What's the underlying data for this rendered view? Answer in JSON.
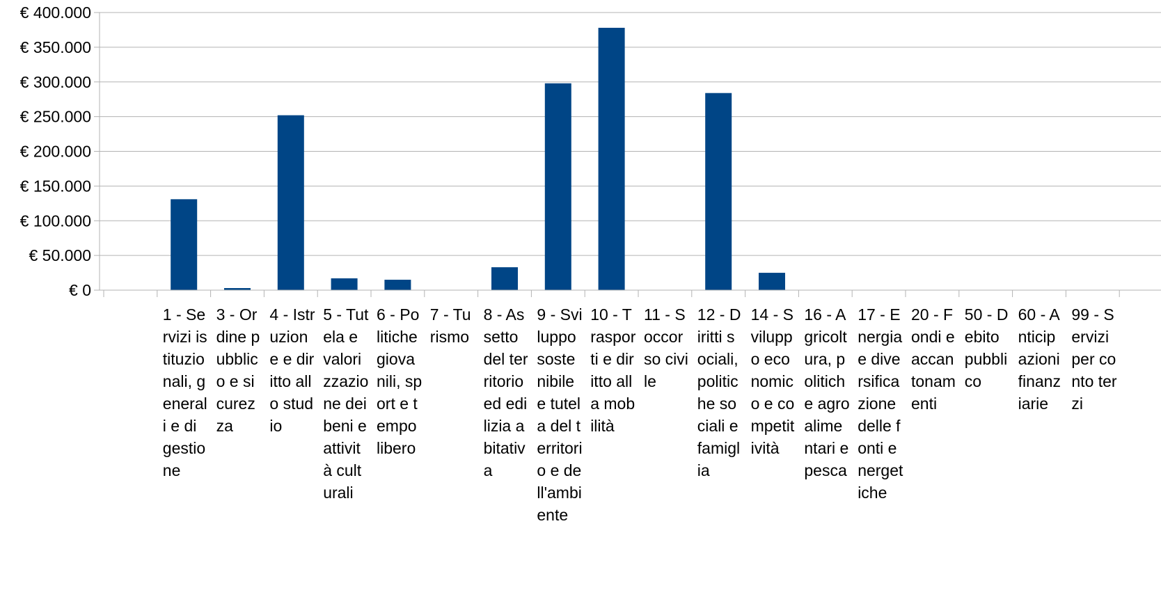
{
  "chart_data": {
    "type": "bar",
    "categories": [
      "1 - Servizi istituzionali, generali e di gestione",
      "3 - Ordine pubblico e sicurezza",
      "4 - Istruzione e diritto allo studio",
      "5 - Tutela e valorizzazione dei beni e attività culturali",
      "6 - Politiche giovanili, sport e tempo libero",
      "7 - Turismo",
      "8 - Assetto del territorio ed edilizia abitativa",
      "9 - Sviluppo sostenibile e tutela del territorio e dell'ambiente",
      "10 - Trasporti e diritto alla mobilità",
      "11 - Soccorso civile",
      "12 - Diritti sociali, politiche sociali e famiglia",
      "14 - Sviluppo economico e competitività",
      "16 - Agricoltura, politiche agroalimentari e pesca",
      "17 - Energia e diversificazione delle fonti energetiche",
      "20 - Fondi e accantonamenti",
      "50 - Debito pubblico",
      "60 - Anticipazioni finanziarie",
      "99 - Servizi per conto terzi"
    ],
    "values": [
      131000,
      3000,
      252000,
      17000,
      15000,
      0,
      33000,
      298000,
      378000,
      0,
      284000,
      25000,
      0,
      0,
      0,
      0,
      0,
      0
    ],
    "ylim": [
      0,
      400000
    ],
    "yticks": [
      0,
      50000,
      100000,
      150000,
      200000,
      250000,
      300000,
      350000,
      400000
    ],
    "ytick_labels": [
      "€ 0",
      "€ 50.000",
      "€ 100.000",
      "€ 150.000",
      "€ 200.000",
      "€ 250.000",
      "€ 300.000",
      "€ 350.000",
      "€ 400.000"
    ],
    "bar_color": "#004586",
    "grid": true,
    "legend": "none"
  }
}
